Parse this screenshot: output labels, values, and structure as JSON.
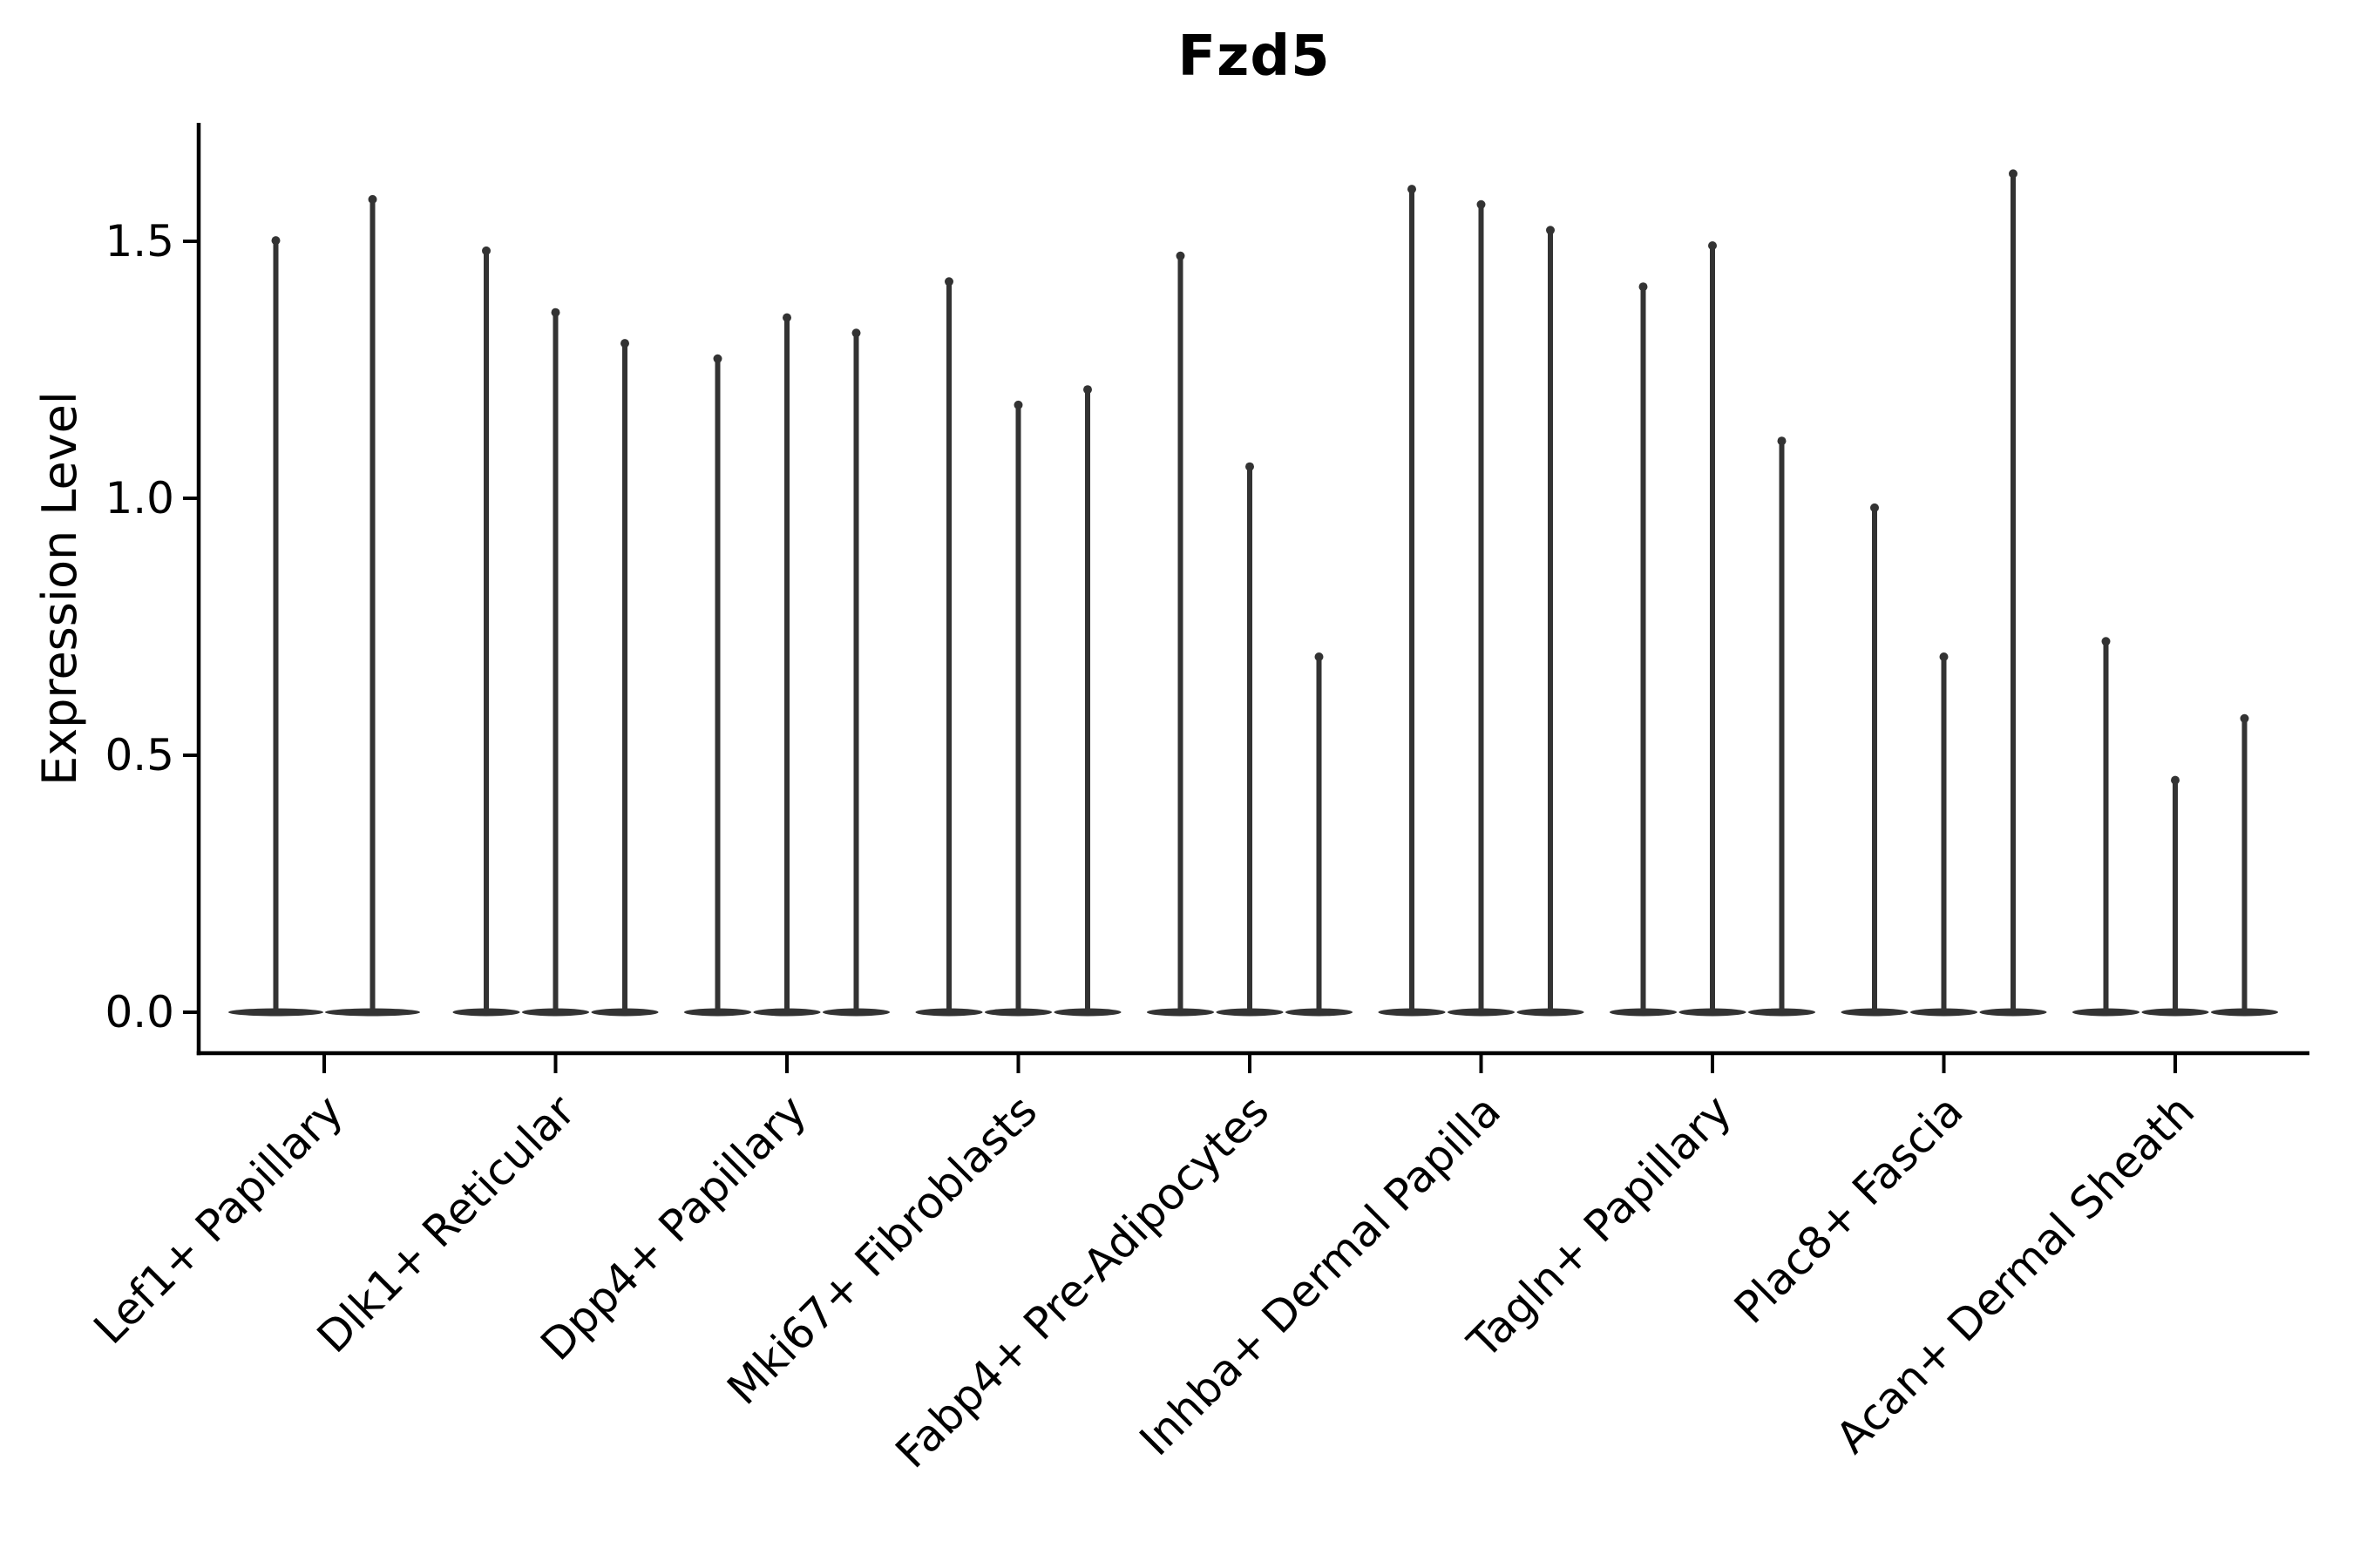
{
  "chart_data": {
    "type": "violin",
    "title": "Fzd5",
    "ylabel": "Expression Level",
    "xlabel": "",
    "yticks": [
      "0.0",
      "0.5",
      "1.0",
      "1.5"
    ],
    "ylim": [
      -0.08,
      1.73
    ],
    "grid": false,
    "legend": "none",
    "categories": [
      "Lef1+ Papillary",
      "Dlk1+ Reticular",
      "Dpp4+ Papillary",
      "Mki67+ Fibroblasts",
      "Fabp4+ Pre-Adipocytes",
      "Inhba+ Dermal Papilla",
      "Tagln+ Papillary",
      "Plac8+ Fascia",
      "Acan+ Dermal Sheath"
    ],
    "groups": [
      {
        "category": "Lef1+ Papillary",
        "violin_max_values": [
          1.51,
          1.59
        ]
      },
      {
        "category": "Dlk1+ Reticular",
        "violin_max_values": [
          1.49,
          1.37,
          1.31
        ]
      },
      {
        "category": "Dpp4+ Papillary",
        "violin_max_values": [
          1.28,
          1.36,
          1.33
        ]
      },
      {
        "category": "Mki67+ Fibroblasts",
        "violin_max_values": [
          1.43,
          1.19,
          1.22
        ]
      },
      {
        "category": "Fabp4+ Pre-Adipocytes",
        "violin_max_values": [
          1.48,
          1.07,
          0.7
        ]
      },
      {
        "category": "Inhba+ Dermal Papilla",
        "violin_max_values": [
          1.61,
          1.58,
          1.53
        ]
      },
      {
        "category": "Tagln+ Papillary",
        "violin_max_values": [
          1.42,
          1.5,
          1.12
        ]
      },
      {
        "category": "Plac8+ Fascia",
        "violin_max_values": [
          0.99,
          0.7,
          1.64
        ]
      },
      {
        "category": "Acan+ Dermal Sheath",
        "violin_max_values": [
          0.73,
          0.46,
          0.58
        ]
      }
    ],
    "colors": {
      "violin": "#333333",
      "axis": "#000000",
      "text": "#000000",
      "background": "#ffffff"
    }
  }
}
